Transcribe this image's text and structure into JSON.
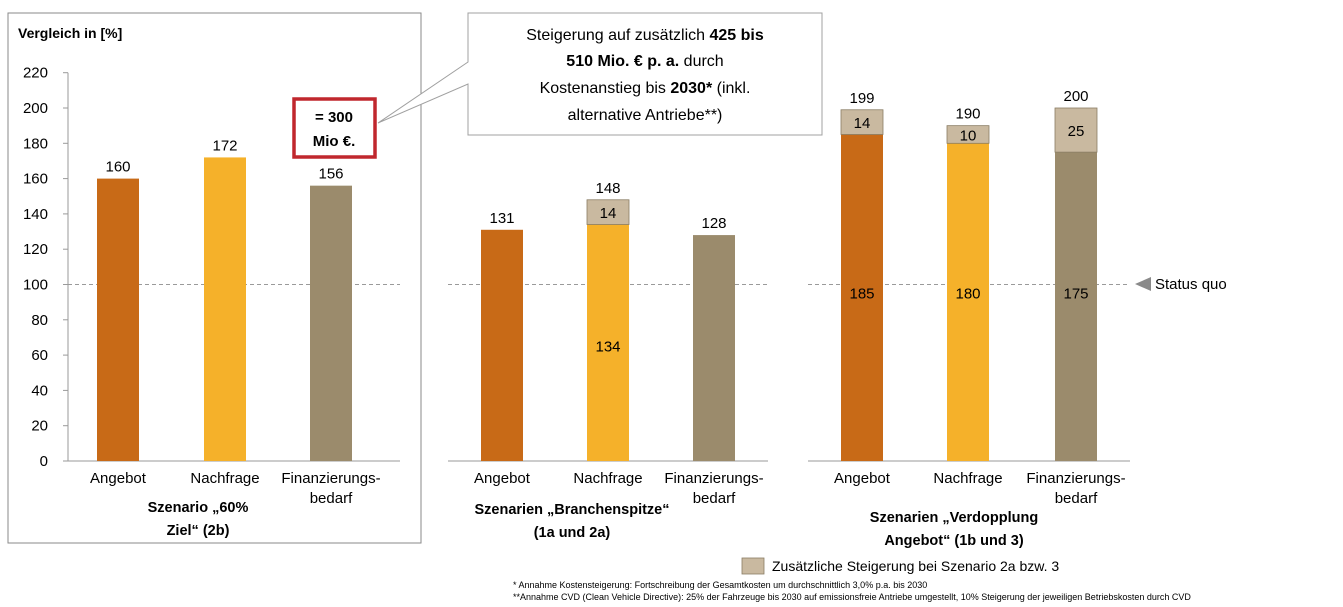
{
  "chart_data": {
    "type": "bar",
    "ylabel": "Vergleich in [%]",
    "ylim": [
      0,
      220
    ],
    "yticks": [
      0,
      20,
      40,
      60,
      80,
      100,
      120,
      140,
      160,
      180,
      200,
      220
    ],
    "grid": false,
    "status_quo": {
      "value": 100,
      "label": "Status quo"
    },
    "colors": {
      "Angebot": "#C86A17",
      "Nachfrage": "#F5B12A",
      "Finanzierungsbedarf": "#9B8B6C",
      "Zusatz": "#C9B9A0"
    },
    "groups": [
      {
        "title_lines": [
          "Szenario „60%",
          "Ziel“ (2b)"
        ],
        "categories": [
          "Angebot",
          "Nachfrage",
          "Finanzierungs-",
          "bedarf"
        ],
        "bars": [
          {
            "category": "Angebot",
            "base": 160,
            "extra": null,
            "total": 160
          },
          {
            "category": "Nachfrage",
            "base": 172,
            "extra": null,
            "total": 172
          },
          {
            "category": "Finanzierungsbedarf",
            "base": 156,
            "extra": null,
            "total": 156
          }
        ],
        "annotation_lines": [
          "= 300",
          "Mio €."
        ]
      },
      {
        "title_lines": [
          "Szenarien „Branchenspitze“",
          "(1a und 2a)"
        ],
        "categories": [
          "Angebot",
          "Nachfrage",
          "Finanzierungs-",
          "bedarf"
        ],
        "bars": [
          {
            "category": "Angebot",
            "base": 131,
            "extra": null,
            "total": 131
          },
          {
            "category": "Nachfrage",
            "base": 134,
            "extra": 14,
            "total": 148
          },
          {
            "category": "Finanzierungsbedarf",
            "base": 128,
            "extra": null,
            "total": 128
          }
        ]
      },
      {
        "title_lines": [
          "Szenarien „Verdopplung",
          "Angebot“ (1b und 3)"
        ],
        "categories": [
          "Angebot",
          "Nachfrage",
          "Finanzierungs-",
          "bedarf"
        ],
        "bars": [
          {
            "category": "Angebot",
            "base": 185,
            "extra": 14,
            "total": 199
          },
          {
            "category": "Nachfrage",
            "base": 180,
            "extra": 10,
            "total": 190
          },
          {
            "category": "Finanzierungsbedarf",
            "base": 175,
            "extra": 25,
            "total": 200
          }
        ]
      }
    ],
    "callout": {
      "segments": [
        [
          {
            "t": "Steigerung auf zusätzlich ",
            "b": false
          },
          {
            "t": "425 bis",
            "b": true
          }
        ],
        [
          {
            "t": "510 Mio. € p. a.",
            "b": true
          },
          {
            "t": " durch",
            "b": false
          }
        ],
        [
          {
            "t": "Kostenanstieg bis ",
            "b": false
          },
          {
            "t": "2030*",
            "b": true
          },
          {
            "t": " (inkl.",
            "b": false
          }
        ],
        [
          {
            "t": "alternative Antriebe**)",
            "b": false
          }
        ]
      ]
    },
    "legend": [
      {
        "name": "Zusätzliche Steigerung bei Szenario 2a bzw. 3",
        "color": "#C9B9A0"
      }
    ],
    "footnotes": [
      "* Annahme Kostensteigerung: Fortschreibung der Gesamtkosten um durchschnittlich 3,0% p.a. bis 2030",
      "**Annahme CVD (Clean Vehicle Directive): 25% der Fahrzeuge bis 2030 auf emissionsfreie Antriebe umgestellt, 10% Steigerung der jeweiligen Betriebskosten durch CVD"
    ]
  }
}
